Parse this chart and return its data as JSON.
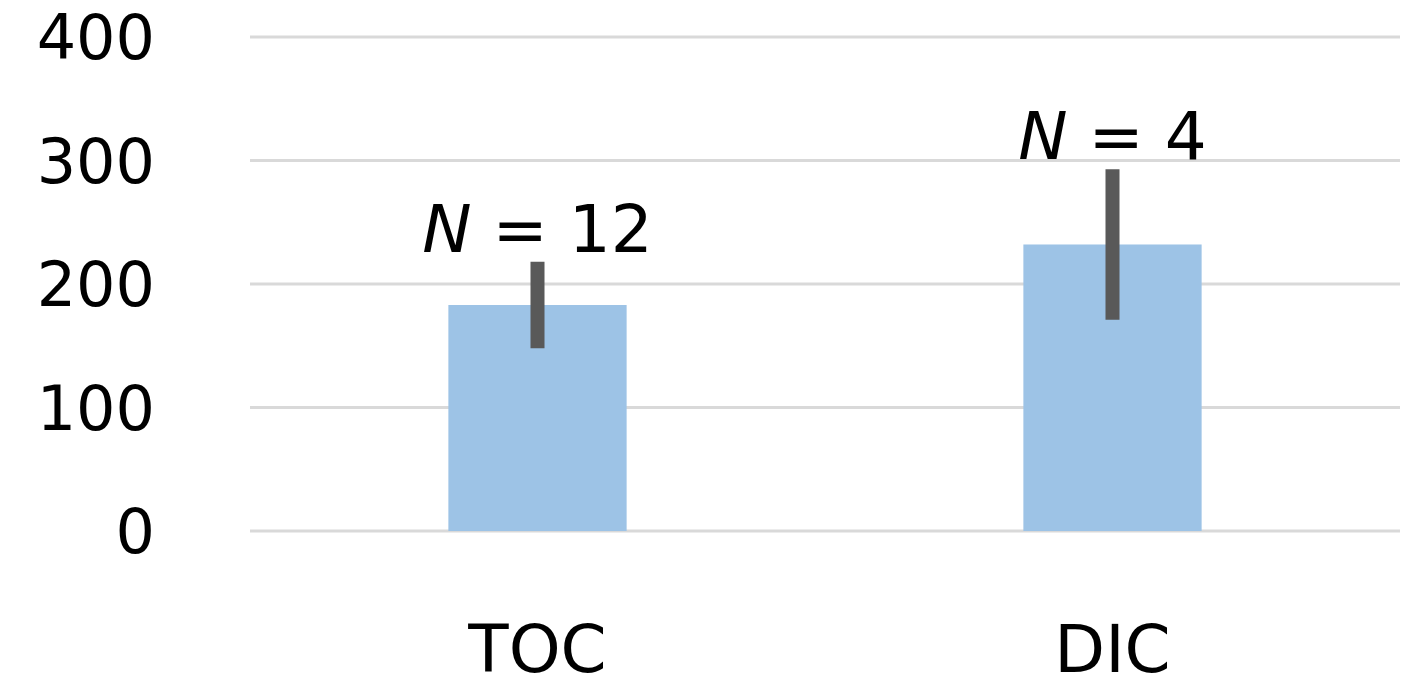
{
  "chart_data": {
    "type": "bar",
    "categories": [
      "TOC",
      "DIC"
    ],
    "values": [
      183,
      232
    ],
    "errors": [
      35,
      61
    ],
    "color": "#9dc3e6",
    "ylim": [
      0,
      400
    ],
    "yticks": [
      0,
      100,
      200,
      300,
      400
    ],
    "grid": "y",
    "annotations": [
      {
        "text": "N = 12",
        "x": "TOC",
        "y": 218
      },
      {
        "text": "N = 4",
        "x": "DIC",
        "y": 293
      }
    ]
  }
}
